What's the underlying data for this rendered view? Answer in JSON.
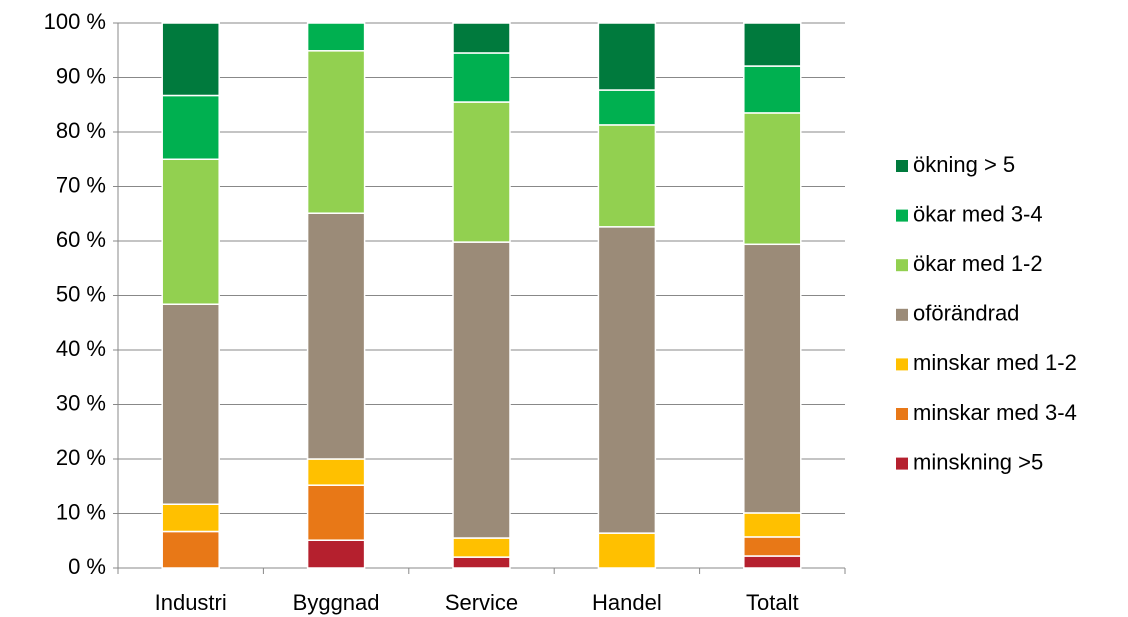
{
  "chart_data": {
    "type": "stacked_bar",
    "categories": [
      "Industri",
      "Byggnad",
      "Service",
      "Handel",
      "Totalt"
    ],
    "series": [
      {
        "name": "minskning >5",
        "color": "#b5202e",
        "values": [
          0,
          5.1,
          2.0,
          0,
          2.2
        ]
      },
      {
        "name": "minskar med 3-4",
        "color": "#e87817",
        "values": [
          6.7,
          10.1,
          0,
          0,
          3.5
        ]
      },
      {
        "name": "minskar med 1-2",
        "color": "#ffc000",
        "values": [
          5.0,
          4.8,
          3.5,
          6.4,
          4.4
        ]
      },
      {
        "name": "oförändrad",
        "color": "#9b8b78",
        "values": [
          36.7,
          45.1,
          54.3,
          56.2,
          49.3
        ]
      },
      {
        "name": "ökar med 1-2",
        "color": "#92d050",
        "values": [
          26.6,
          29.8,
          25.7,
          18.7,
          24.1
        ]
      },
      {
        "name": "ökar med 3-4",
        "color": "#00b050",
        "values": [
          11.7,
          5.1,
          9.0,
          6.4,
          8.6
        ]
      },
      {
        "name": "ökning > 5",
        "color": "#007a3d",
        "values": [
          13.3,
          0,
          5.5,
          12.3,
          7.9
        ]
      }
    ],
    "ylim": [
      0,
      100
    ],
    "yticks": [
      {
        "value": 0,
        "label": "0 %"
      },
      {
        "value": 10,
        "label": "10 %"
      },
      {
        "value": 20,
        "label": "20 %"
      },
      {
        "value": 30,
        "label": "30 %"
      },
      {
        "value": 40,
        "label": "40 %"
      },
      {
        "value": 50,
        "label": "50 %"
      },
      {
        "value": 60,
        "label": "60 %"
      },
      {
        "value": 70,
        "label": "70 %"
      },
      {
        "value": 80,
        "label": "80 %"
      },
      {
        "value": 90,
        "label": "90 %"
      },
      {
        "value": 100,
        "label": "100 %"
      }
    ],
    "grid": true,
    "legend": "right"
  }
}
